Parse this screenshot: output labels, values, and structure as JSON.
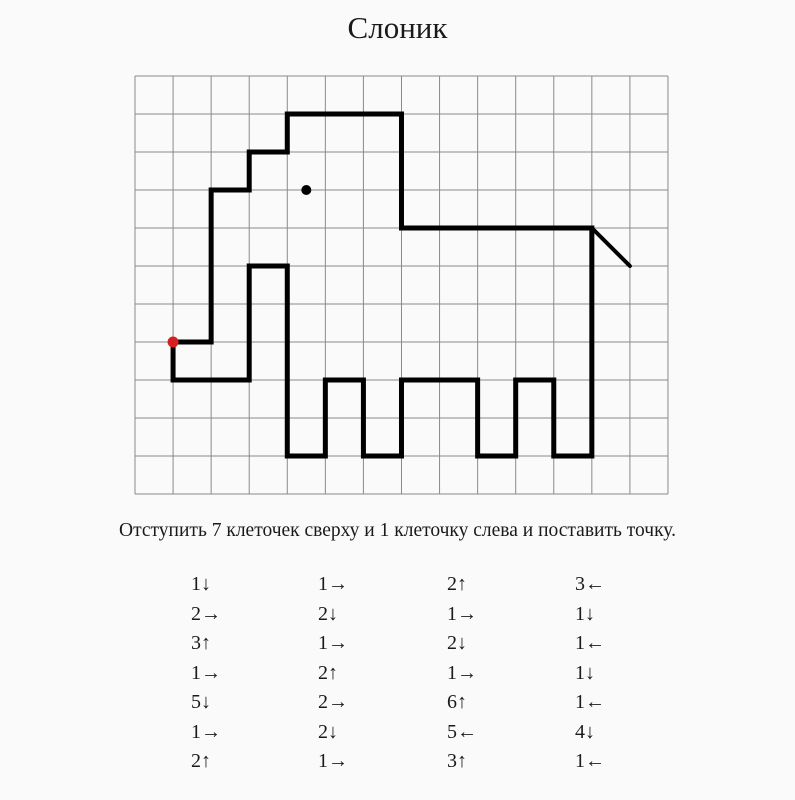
{
  "title": "Слоник",
  "instruction": "Отступить 7 клеточек сверху и 1 клеточку слева и поставить точку.",
  "grid": {
    "columns": 14,
    "rows": 11,
    "start_point": {
      "col": 1,
      "row": 7,
      "color": "#d42020"
    },
    "eye": {
      "col": 4.5,
      "row": 3
    },
    "tail_end": {
      "col": 13,
      "row": 5
    }
  },
  "steps": [
    [
      "1↓",
      "2→",
      "3↑",
      "1→",
      "5↓",
      "1→",
      "2↑"
    ],
    [
      "1→",
      "2↓",
      "1→",
      "2↑",
      "2→",
      "2↓",
      "1→"
    ],
    [
      "2↑",
      "1→",
      "2↓",
      "1→",
      "6↑",
      "5←",
      "3↑"
    ],
    [
      "3←",
      "1↓",
      "1←",
      "1↓",
      "1←",
      "4↓",
      "1←"
    ]
  ],
  "colors": {
    "line": "#000000",
    "grid": "#8a8a8a",
    "start": "#d42020"
  }
}
